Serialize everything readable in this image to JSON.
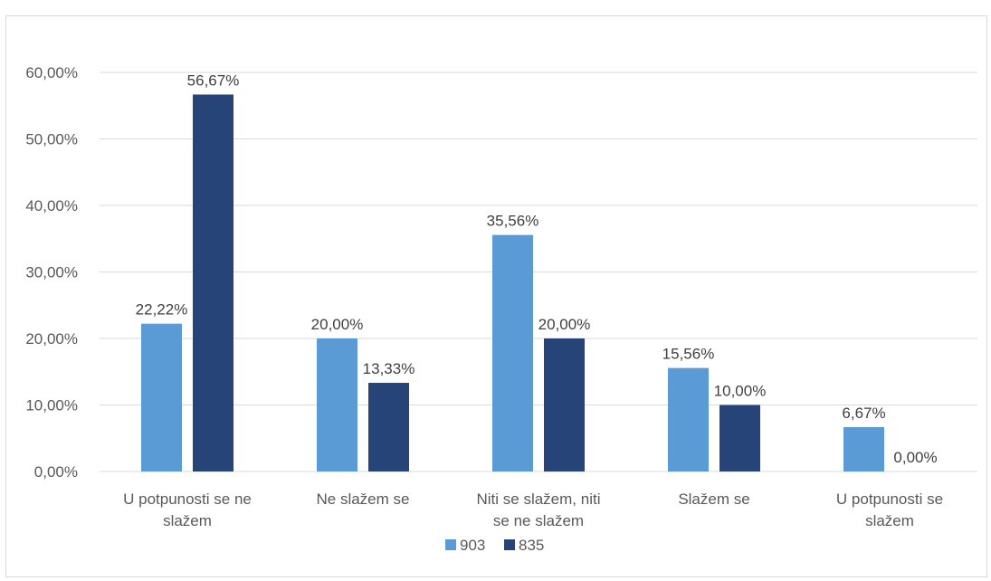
{
  "chart_data": {
    "type": "bar",
    "title": "",
    "xlabel": "",
    "ylabel": "",
    "categories": [
      [
        "U potpunosti se ne",
        "slažem"
      ],
      [
        "Ne slažem se"
      ],
      [
        "Niti se slažem, niti",
        "se ne slažem"
      ],
      [
        "Slažem se"
      ],
      [
        "U potpunosti se",
        "slažem"
      ]
    ],
    "series": [
      {
        "name": "903",
        "color": "#5b9bd5",
        "values": [
          0.2222,
          0.2,
          0.3556,
          0.1556,
          0.0667
        ],
        "labels": [
          "22,22%",
          "20,00%",
          "35,56%",
          "15,56%",
          "6,67%"
        ]
      },
      {
        "name": "835",
        "color": "#264478",
        "values": [
          0.5667,
          0.1333,
          0.2,
          0.1,
          0.0
        ],
        "labels": [
          "56,67%",
          "13,33%",
          "20,00%",
          "10,00%",
          "0,00%"
        ]
      }
    ],
    "ylim": [
      0,
      0.6
    ],
    "yticks": [
      0,
      0.1,
      0.2,
      0.3,
      0.4,
      0.5,
      0.6
    ],
    "ytick_labels": [
      "0,00%",
      "10,00%",
      "20,00%",
      "30,00%",
      "40,00%",
      "50,00%",
      "60,00%"
    ],
    "grid": true,
    "legend_position": "bottom"
  }
}
